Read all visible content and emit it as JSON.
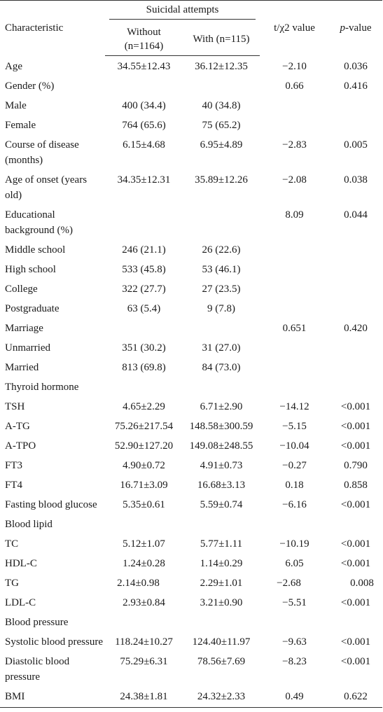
{
  "header": {
    "characteristic": "Characteristic",
    "group": "Suicidal attempts",
    "without_line1": "Without",
    "without_line2": "(n=1164)",
    "with": "With (n=115)",
    "stat": "t/χ2 value",
    "p_italic": "p",
    "p_suffix": "-value"
  },
  "rows": [
    {
      "label": "Age",
      "without": "34.55±12.43",
      "with": "36.12±12.35",
      "stat": "−2.10",
      "p": "0.036"
    },
    {
      "label": "Gender (%)",
      "without": "",
      "with": "",
      "stat": "0.66",
      "p": "0.416"
    },
    {
      "label": "Male",
      "without": "400 (34.4)",
      "with": "40 (34.8)",
      "stat": "",
      "p": ""
    },
    {
      "label": "Female",
      "without": "764 (65.6)",
      "with": "75 (65.2)",
      "stat": "",
      "p": ""
    },
    {
      "label": "Course of disease (months)",
      "without": "6.15±4.68",
      "with": "6.95±4.89",
      "stat": "−2.83",
      "p": "0.005"
    },
    {
      "label": "Age of onset (years old)",
      "without": "34.35±12.31",
      "with": "35.89±12.26",
      "stat": "−2.08",
      "p": "0.038"
    },
    {
      "label": "Educational background (%)",
      "without": "",
      "with": "",
      "stat": "8.09",
      "p": "0.044"
    },
    {
      "label": "Middle school",
      "without": "246 (21.1)",
      "with": "26 (22.6)",
      "stat": "",
      "p": ""
    },
    {
      "label": "High school",
      "without": "533 (45.8)",
      "with": "53 (46.1)",
      "stat": "",
      "p": ""
    },
    {
      "label": "College",
      "without": "322 (27.7)",
      "with": "27 (23.5)",
      "stat": "",
      "p": ""
    },
    {
      "label": "Postgraduate",
      "without": "63 (5.4)",
      "with": "9 (7.8)",
      "stat": "",
      "p": ""
    },
    {
      "label": "Marriage",
      "without": "",
      "with": "",
      "stat": "0.651",
      "p": "0.420"
    },
    {
      "label": "Unmarried",
      "without": "351 (30.2)",
      "with": "31 (27.0)",
      "stat": "",
      "p": ""
    },
    {
      "label": "Married",
      "without": "813 (69.8)",
      "with": "84 (73.0)",
      "stat": "",
      "p": ""
    },
    {
      "label": "Thyroid hormone",
      "without": "",
      "with": "",
      "stat": "",
      "p": ""
    },
    {
      "label": "TSH",
      "without": "4.65±2.29",
      "with": "6.71±2.90",
      "stat": "−14.12",
      "p": "<0.001"
    },
    {
      "label": "A-TG",
      "without": "75.26±217.54",
      "with": "148.58±300.59",
      "stat": "−5.15",
      "p": "<0.001"
    },
    {
      "label": "A-TPO",
      "without": "52.90±127.20",
      "with": "149.08±248.55",
      "stat": "−10.04",
      "p": "<0.001"
    },
    {
      "label": "FT3",
      "without": "4.90±0.72",
      "with": "4.91±0.73",
      "stat": "−0.27",
      "p": "0.790"
    },
    {
      "label": "FT4",
      "without": "16.71±3.09",
      "with": "16.68±3.13",
      "stat": "0.18",
      "p": "0.858"
    },
    {
      "label": "Fasting blood glucose",
      "without": "5.35±0.61",
      "with": "5.59±0.74",
      "stat": "−6.16",
      "p": "<0.001"
    },
    {
      "label": "Blood lipid",
      "without": "",
      "with": "",
      "stat": "",
      "p": ""
    },
    {
      "label": "TC",
      "without": "5.12±1.07",
      "with": "5.77±1.11",
      "stat": "−10.19",
      "p": "<0.001"
    },
    {
      "label": "HDL-C",
      "without": "1.24±0.28",
      "with": "1.14±0.29",
      "stat": "6.05",
      "p": "<0.001"
    },
    {
      "label": "TG",
      "without": "2.14±0.98",
      "with": "2.29±1.01",
      "stat": "−2.68",
      "p": "0.008"
    },
    {
      "label": "LDL-C",
      "without": "2.93±0.84",
      "with": "3.21±0.90",
      "stat": "−5.51",
      "p": "<0.001"
    },
    {
      "label": "Blood pressure",
      "without": "",
      "with": "",
      "stat": "",
      "p": ""
    },
    {
      "label": "Systolic blood pressure",
      "without": "118.24±10.27",
      "with": "124.40±11.97",
      "stat": "−9.63",
      "p": "<0.001"
    },
    {
      "label": "Diastolic blood pressure",
      "without": "75.29±6.31",
      "with": "78.56±7.69",
      "stat": "−8.23",
      "p": "<0.001"
    },
    {
      "label": "BMI",
      "without": "24.38±1.81",
      "with": "24.32±2.33",
      "stat": "0.49",
      "p": "0.622"
    }
  ]
}
